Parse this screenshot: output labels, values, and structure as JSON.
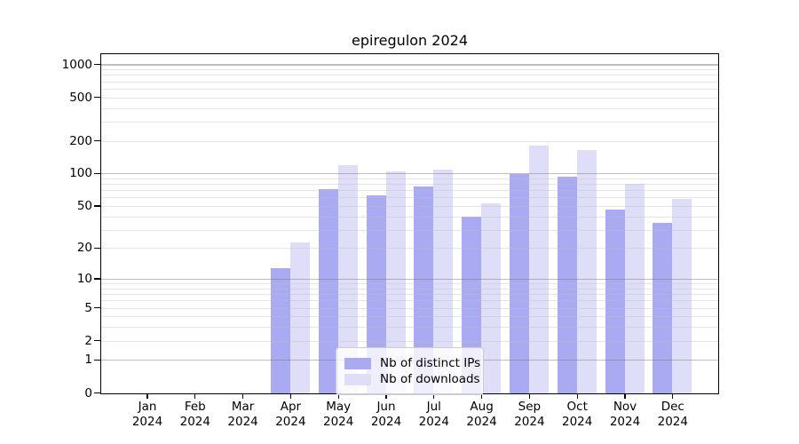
{
  "chart_data": {
    "type": "bar",
    "title": "epiregulon 2024",
    "x_year": "2024",
    "categories": [
      "Jan",
      "Feb",
      "Mar",
      "Apr",
      "May",
      "Jun",
      "Jul",
      "Aug",
      "Sep",
      "Oct",
      "Nov",
      "Dec"
    ],
    "series": [
      {
        "name": "Nb of distinct IPs",
        "color": "#aaaaf2",
        "values": [
          0,
          0,
          0,
          13,
          72,
          63,
          77,
          40,
          100,
          95,
          47,
          35
        ]
      },
      {
        "name": "Nb of downloads",
        "color": "#dedef8",
        "values": [
          0,
          0,
          0,
          23,
          120,
          106,
          109,
          53,
          183,
          167,
          81,
          59
        ]
      }
    ],
    "y_axis": {
      "scale": "log1p",
      "tick_values": [
        0,
        1,
        2,
        5,
        10,
        20,
        50,
        100,
        200,
        500,
        1000
      ],
      "major_grid_values": [
        1,
        10,
        100,
        1000
      ],
      "ylim": [
        0,
        1000
      ]
    },
    "legend": {
      "position": "lower center"
    },
    "colors": {
      "grid_major": "#b5b5b5",
      "grid_minor": "#e6e6e6",
      "spine": "#000000",
      "background": "#ffffff"
    }
  }
}
